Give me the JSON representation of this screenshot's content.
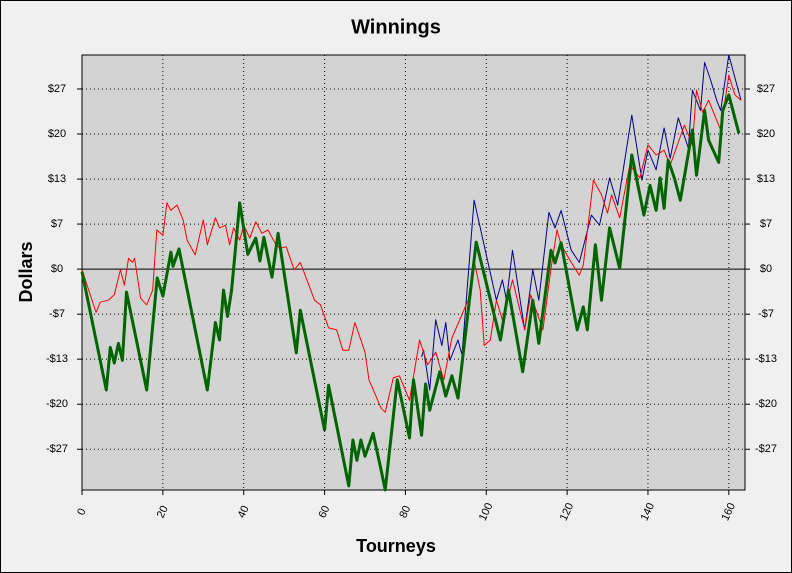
{
  "chart_data": {
    "type": "line",
    "title": "Winnings",
    "x_label": "Tourneys",
    "y_label": "Dollars",
    "xlim": [
      0,
      164
    ],
    "xticks": [
      0,
      20,
      40,
      60,
      80,
      100,
      120,
      140,
      160
    ],
    "ylim": [
      -32.7,
      31.7
    ],
    "yticks": [
      {
        "value": 26.67,
        "label": "$27"
      },
      {
        "value": 20,
        "label": "$20"
      },
      {
        "value": 13.33,
        "label": "$13"
      },
      {
        "value": 6.67,
        "label": "$7"
      },
      {
        "value": 0,
        "label": "$0"
      },
      {
        "value": -6.67,
        "label": "-$7"
      },
      {
        "value": -13.33,
        "label": "-$13"
      },
      {
        "value": -20,
        "label": "-$20"
      },
      {
        "value": -26.67,
        "label": "-$27"
      }
    ],
    "grid": true,
    "series": [
      {
        "color": "#006400",
        "width": 3,
        "x": [
          0,
          6,
          7,
          8,
          9,
          10,
          11,
          16,
          18.6,
          20,
          22,
          22.5,
          24,
          31,
          33,
          34,
          35,
          36,
          37,
          39,
          41,
          43,
          44,
          45,
          47,
          48.5,
          53,
          54,
          60,
          61,
          66,
          67,
          68,
          69,
          70,
          72,
          74,
          75,
          78,
          81,
          82,
          84,
          85,
          86,
          88.5,
          90,
          91.5,
          93,
          97.5,
          103.5,
          105.5,
          109,
          111.5,
          113,
          116,
          117,
          118.5,
          122.5,
          124,
          125,
          127,
          128.5,
          130.5,
          133,
          136,
          139,
          140.5,
          142,
          143,
          144,
          145,
          146.5,
          148,
          151,
          152,
          154,
          155,
          157.5,
          158.5,
          160,
          162.5
        ],
        "values": [
          -0.4,
          -17.9,
          -11.6,
          -13.9,
          -11,
          -13.5,
          -3.4,
          -17.9,
          -1.3,
          -4,
          2.5,
          0.4,
          3,
          -17.9,
          -7.9,
          -10.5,
          -3.1,
          -7,
          -3.1,
          9.8,
          2.2,
          4.6,
          1.2,
          4.7,
          -1.2,
          5.3,
          -12.4,
          -6.1,
          -23.8,
          -17.2,
          -32.1,
          -25.3,
          -28.3,
          -25.3,
          -27.7,
          -24.3,
          -29.8,
          -32.7,
          -16.4,
          -25,
          -16.4,
          -24.6,
          -17,
          -20.9,
          -15.2,
          -18.8,
          -15.8,
          -19.1,
          4,
          -10.5,
          -3.1,
          -15.2,
          -4.6,
          -11,
          2.8,
          0.9,
          3.9,
          -9,
          -5.6,
          -9,
          3.6,
          -4.6,
          6.1,
          0.1,
          16.9,
          8,
          12.4,
          8.7,
          13.5,
          9,
          16.1,
          13.5,
          10.2,
          20.6,
          13.9,
          23.5,
          19.1,
          15.8,
          23.5,
          25.8,
          20.1
        ]
      },
      {
        "color": "#ff0000",
        "width": 1,
        "x": [
          0,
          3.5,
          4.5,
          6.5,
          8,
          9.5,
          10.5,
          11.5,
          12.5,
          13,
          14.5,
          16,
          17.5,
          18.5,
          20,
          21,
          22,
          23.5,
          25,
          26,
          28,
          30,
          31,
          33,
          34,
          35.5,
          36.5,
          37.5,
          39,
          40,
          41.5,
          43,
          44.5,
          46,
          48,
          49,
          50.5,
          52.5,
          54,
          57.5,
          59,
          61,
          63,
          64.5,
          66,
          67.5,
          70,
          71,
          74,
          75,
          77,
          78.5,
          81,
          83.5,
          85.5,
          87.5,
          89.5,
          91.5,
          95.5,
          97,
          98.5,
          99.5,
          101,
          102.5,
          104,
          106.5,
          109.5,
          111,
          114,
          116,
          117.5,
          118.5,
          121,
          123,
          124,
          126.5,
          128.5,
          130,
          131,
          133,
          135.5,
          138,
          140,
          142,
          144,
          145.5,
          149,
          151,
          152,
          153.5,
          155,
          158,
          160,
          161.5,
          163
        ],
        "values": [
          -0.1,
          -6.4,
          -4.9,
          -4.6,
          -3.8,
          -0.1,
          -2.4,
          1.6,
          1,
          1.6,
          -4.3,
          -5.3,
          -3.1,
          5.8,
          5,
          9.8,
          8.7,
          9.5,
          7.3,
          4.3,
          2.1,
          7.3,
          3.6,
          7.6,
          6.1,
          6.5,
          3.6,
          6.1,
          4.3,
          6.5,
          4.6,
          7,
          5.3,
          5.8,
          3.6,
          3.1,
          3.3,
          -0.1,
          1,
          -4.6,
          -5.3,
          -8.7,
          -9,
          -12,
          -12,
          -7.9,
          -12.3,
          -16.4,
          -20.6,
          -21.2,
          -16.1,
          -15.8,
          -19.4,
          -10.5,
          -14.2,
          -12.3,
          -16.4,
          -10.2,
          -4.6,
          1.3,
          -3.1,
          -11.3,
          -10.5,
          -4.6,
          -7.5,
          -1.6,
          -9,
          -3.8,
          -9,
          0.1,
          5.8,
          3.6,
          1,
          -0.9,
          0.6,
          13.2,
          11,
          8.3,
          11,
          7.6,
          15.4,
          13.5,
          18.4,
          16.9,
          17.6,
          15.4,
          21.3,
          18.4,
          26.5,
          23.2,
          25,
          20.6,
          28.7,
          25.8,
          25
        ]
      },
      {
        "color": "#00008b",
        "width": 1,
        "x": [
          84,
          84.5,
          86,
          87.5,
          89,
          90,
          91,
          93,
          94,
          97,
          102.5,
          104,
          105,
          106.5,
          109.5,
          111.5,
          113,
          115.5,
          117,
          118.5,
          121,
          123,
          126,
          128,
          130.5,
          132.5,
          136,
          138.5,
          140,
          142,
          144,
          145.5,
          147.5,
          150,
          151,
          153,
          154,
          155.5,
          157,
          158,
          160,
          163
        ],
        "values": [
          -13,
          -12,
          -17.9,
          -7.5,
          -11.3,
          -7.9,
          -13.5,
          -10.5,
          -12.7,
          10.2,
          -4.6,
          -1.6,
          -4.6,
          2.8,
          -9,
          -0.1,
          -4.6,
          8.4,
          6.1,
          8.7,
          2.8,
          1,
          8,
          6.5,
          13.5,
          9.5,
          22.8,
          13.2,
          17.6,
          14.7,
          20.9,
          16.4,
          22.4,
          17.9,
          26.5,
          23.5,
          30.6,
          28,
          25,
          23.5,
          31.7,
          25
        ]
      }
    ]
  }
}
